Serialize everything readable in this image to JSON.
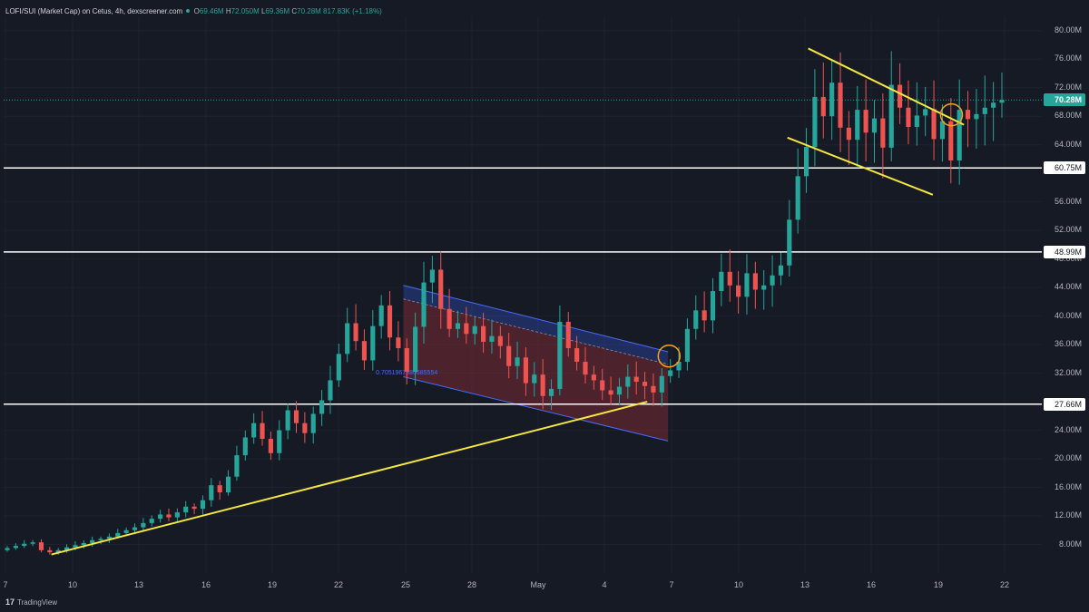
{
  "header": {
    "symbol": "LOFI/SUI (Market Cap) on Cetus, 4h, dexscreener.com",
    "o_key": "O",
    "o_val": "69.46M",
    "h_key": "H",
    "h_val": "72.050M",
    "l_key": "L",
    "l_val": "69.36M",
    "c_key": "C",
    "c_val": "70.28M",
    "change": "817.83K (+1.18%)"
  },
  "footer": {
    "logo_glyph": "17",
    "brand": "TradingView"
  },
  "colors": {
    "background": "#161a25",
    "up": "#26a69a",
    "down": "#ef5350",
    "trendline": "#f5e642",
    "level_line": "#ffffff",
    "channel_upper": "#2a3f8f",
    "channel_lower": "#7a2a33",
    "circle": "#f7a21b"
  },
  "price_labels": {
    "current": "70.28M",
    "levels": [
      "60.75M",
      "48.99M",
      "27.66M"
    ]
  },
  "fib_label": "0.7051967380685554",
  "chart_data": {
    "type": "candlestick",
    "y_unit": "M",
    "ylim": [
      4,
      82
    ],
    "y_ticks": [
      "80.00M",
      "76.00M",
      "72.00M",
      "68.00M",
      "64.00M",
      "56.00M",
      "52.00M",
      "48.00M",
      "44.00M",
      "40.00M",
      "36.00M",
      "32.00M",
      "24.00M",
      "20.00M",
      "16.00M",
      "12.00M",
      "8.00M"
    ],
    "x_ticks": [
      "7",
      "10",
      "13",
      "16",
      "19",
      "22",
      "25",
      "28",
      "May",
      "4",
      "7",
      "10",
      "13",
      "16",
      "19",
      "22"
    ],
    "current_price": 70.28,
    "horizontal_levels": [
      60.75,
      48.99,
      27.66
    ],
    "series": [
      {
        "name": "LOFI/SUI (Market Cap)",
        "closes": [
          7.5,
          7.8,
          8.1,
          8.3,
          7.2,
          6.9,
          7.2,
          7.6,
          7.9,
          8.2,
          8.6,
          8.8,
          9.1,
          9.6,
          10.0,
          10.4,
          11.0,
          11.6,
          12.2,
          11.8,
          12.5,
          13.3,
          13.0,
          14.2,
          16.3,
          15.3,
          17.5,
          20.5,
          23.0,
          25.0,
          22.8,
          20.8,
          24.0,
          26.8,
          25.0,
          23.6,
          26.3,
          28.2,
          31.0,
          34.7,
          39.0,
          36.5,
          33.8,
          38.6,
          41.5,
          37.0,
          35.5,
          32.2,
          38.5,
          44.7,
          46.5,
          41.0,
          38.2,
          39.0,
          37.5,
          38.6,
          36.4,
          37.2,
          35.8,
          33.0,
          34.2,
          30.6,
          31.8,
          28.8,
          29.8,
          39.2,
          35.5,
          33.6,
          31.8,
          31.0,
          29.6,
          29.0,
          30.1,
          31.5,
          30.8,
          30.2,
          29.3,
          31.6,
          32.4,
          33.6,
          38.2,
          40.8,
          39.4,
          43.5,
          46.2,
          44.3,
          42.7,
          46.0,
          43.7,
          44.3,
          45.7,
          47.1,
          53.5,
          59.6,
          63.7,
          70.7,
          68.0,
          72.7,
          66.4,
          64.7,
          68.9,
          65.7,
          67.7,
          63.6,
          72.4,
          69.2,
          66.5,
          68.1,
          69.0,
          64.8,
          67.3,
          61.8,
          68.9,
          67.6,
          68.3,
          69.2,
          69.9,
          70.28
        ]
      }
    ],
    "annotations": {
      "support_trendline": {
        "from": [
          0.046,
          6.6
        ],
        "to": [
          0.62,
          28.0
        ]
      },
      "descending_channel_upper": {
        "from": [
          0.385,
          44.3
        ],
        "to": [
          0.64,
          35.0
        ]
      },
      "descending_channel_lower": {
        "from": [
          0.385,
          31.5
        ],
        "to": [
          0.64,
          22.5
        ]
      },
      "upper_falling_trendline_top": {
        "from": [
          0.775,
          77.5
        ],
        "to": [
          0.925,
          66.8
        ]
      },
      "upper_falling_trendline_bottom": {
        "from": [
          0.755,
          65.0
        ],
        "to": [
          0.895,
          57.0
        ]
      },
      "breakout_circles": [
        [
          0.641,
          34.4
        ],
        [
          0.913,
          68.2
        ]
      ]
    }
  }
}
